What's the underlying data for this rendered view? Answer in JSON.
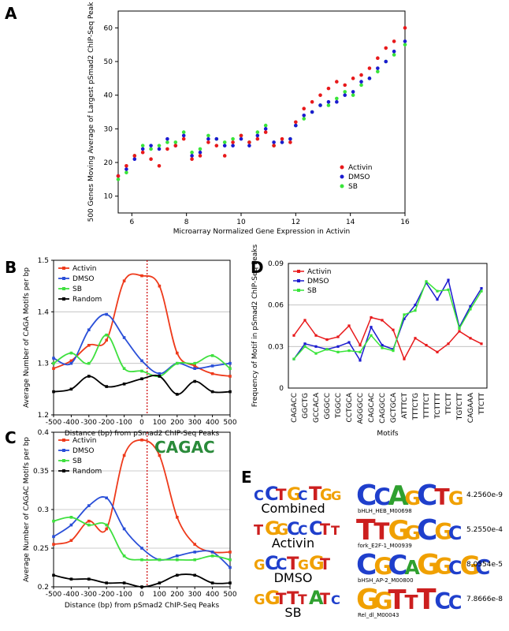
{
  "panels": {
    "A": "A",
    "B": "B",
    "C": "C",
    "D": "D",
    "E": "E"
  },
  "chart_data": [
    {
      "panel": "A",
      "type": "scatter",
      "xlabel": "Microarray Normalized Gene Expression in Activin",
      "ylabel": "500 Genes Moving Average of Largest pSmad2 ChIP-Seq Peak",
      "xlim": [
        5.5,
        16
      ],
      "ylim": [
        5,
        65
      ],
      "xticks": [
        6,
        8,
        10,
        12,
        14,
        16
      ],
      "yticks": [
        10,
        20,
        30,
        40,
        50,
        60
      ],
      "legend_position": "bottom-right",
      "colors": {
        "Activin": "#e8191b",
        "DMSO": "#1b1bd0",
        "SB": "#39e43a"
      },
      "series": [
        {
          "name": "Activin",
          "x": [
            5.5,
            5.8,
            6.1,
            6.4,
            6.7,
            7.0,
            7.3,
            7.6,
            7.9,
            8.2,
            8.5,
            8.8,
            9.1,
            9.4,
            9.7,
            10.0,
            10.3,
            10.6,
            10.9,
            11.2,
            11.5,
            11.8,
            12.0,
            12.3,
            12.6,
            12.9,
            13.2,
            13.5,
            13.8,
            14.1,
            14.4,
            14.7,
            15.0,
            15.3,
            15.6,
            16.0
          ],
          "y": [
            16,
            19,
            22,
            23,
            21,
            19,
            24,
            25,
            27,
            21,
            22,
            26,
            25,
            22,
            26,
            28,
            26,
            27,
            29,
            25,
            27,
            26,
            32,
            36,
            38,
            40,
            42,
            44,
            43,
            45,
            46,
            48,
            51,
            54,
            56,
            60
          ]
        },
        {
          "name": "DMSO",
          "x": [
            5.5,
            5.8,
            6.1,
            6.4,
            6.7,
            7.0,
            7.3,
            7.6,
            7.9,
            8.2,
            8.5,
            8.8,
            9.1,
            9.4,
            9.7,
            10.0,
            10.3,
            10.6,
            10.9,
            11.2,
            11.5,
            11.8,
            12.0,
            12.3,
            12.6,
            12.9,
            13.2,
            13.5,
            13.8,
            14.1,
            14.4,
            14.7,
            15.0,
            15.3,
            15.6,
            16.0
          ],
          "y": [
            16,
            18,
            21,
            24,
            25,
            24,
            27,
            25,
            28,
            22,
            23,
            27,
            27,
            25,
            25,
            27,
            25,
            28,
            30,
            26,
            26,
            27,
            31,
            34,
            35,
            37,
            38,
            38,
            40,
            41,
            44,
            45,
            48,
            50,
            53,
            56
          ]
        },
        {
          "name": "SB",
          "x": [
            5.5,
            5.8,
            6.1,
            6.4,
            6.7,
            7.0,
            7.3,
            7.6,
            7.9,
            8.2,
            8.5,
            8.8,
            9.1,
            9.4,
            9.7,
            10.0,
            10.3,
            10.6,
            10.9,
            11.2,
            11.5,
            11.8,
            12.0,
            12.3,
            12.6,
            12.9,
            13.2,
            13.5,
            13.8,
            14.1,
            14.4,
            14.7,
            15.0,
            15.3,
            15.6,
            16.0
          ],
          "y": [
            15,
            17,
            22,
            25,
            24,
            25,
            26,
            26,
            29,
            23,
            24,
            28,
            27,
            26,
            27,
            28,
            26,
            29,
            31,
            25,
            26,
            27,
            31,
            33,
            35,
            37,
            37,
            39,
            41,
            40,
            43,
            45,
            47,
            50,
            52,
            55
          ]
        }
      ]
    },
    {
      "panel": "B",
      "type": "line",
      "xlabel": "Distance (bp) from pSmad2 ChIP-Seq Peaks",
      "ylabel": "Average Number of CAGA Motifs per bp",
      "xlim": [
        -500,
        500
      ],
      "ylim": [
        1.2,
        1.5
      ],
      "xticks": [
        -500,
        -400,
        -300,
        -200,
        -100,
        0,
        100,
        200,
        300,
        400,
        500
      ],
      "yticks": [
        1.2,
        1.3,
        1.4,
        1.5
      ],
      "grid": true,
      "legend_position": "top-left",
      "colors": {
        "Activin": "#ee3a1b",
        "DMSO": "#2a4fd8",
        "SB": "#3fe03f",
        "Random": "#000000"
      },
      "series": [
        {
          "name": "Activin",
          "x": [
            -500,
            -400,
            -300,
            -200,
            -100,
            0,
            100,
            200,
            300,
            400,
            500
          ],
          "y": [
            1.29,
            1.305,
            1.335,
            1.345,
            1.46,
            1.47,
            1.45,
            1.32,
            1.295,
            1.28,
            1.275
          ]
        },
        {
          "name": "DMSO",
          "x": [
            -500,
            -400,
            -300,
            -200,
            -100,
            0,
            100,
            200,
            300,
            400,
            500
          ],
          "y": [
            1.31,
            1.3,
            1.365,
            1.395,
            1.35,
            1.305,
            1.28,
            1.3,
            1.29,
            1.295,
            1.3
          ]
        },
        {
          "name": "SB",
          "x": [
            -500,
            -400,
            -300,
            -200,
            -100,
            0,
            100,
            200,
            300,
            400,
            500
          ],
          "y": [
            1.3,
            1.32,
            1.3,
            1.355,
            1.29,
            1.285,
            1.275,
            1.3,
            1.3,
            1.315,
            1.29
          ]
        },
        {
          "name": "Random",
          "x": [
            -500,
            -400,
            -300,
            -200,
            -100,
            0,
            100,
            200,
            300,
            400,
            500
          ],
          "y": [
            1.245,
            1.25,
            1.275,
            1.255,
            1.26,
            1.27,
            1.275,
            1.24,
            1.265,
            1.245,
            1.245
          ]
        }
      ]
    },
    {
      "panel": "C",
      "type": "line",
      "xlabel": "Distance (bp) from pSmad2 ChIP-Seq Peaks",
      "ylabel": "Average Number of CAGAC Motifs per bp",
      "xlim": [
        -500,
        500
      ],
      "ylim": [
        0.2,
        0.4
      ],
      "xticks": [
        -500,
        -400,
        -300,
        -200,
        -100,
        0,
        100,
        200,
        300,
        400,
        500
      ],
      "yticks": [
        0.2,
        0.25,
        0.3,
        0.35,
        0.4
      ],
      "grid": true,
      "legend_position": "top-left",
      "colors": {
        "Activin": "#ee3a1b",
        "DMSO": "#2a4fd8",
        "SB": "#3fe03f",
        "Random": "#000000"
      },
      "series": [
        {
          "name": "Activin",
          "x": [
            -500,
            -400,
            -300,
            -200,
            -100,
            0,
            100,
            200,
            300,
            400,
            500
          ],
          "y": [
            0.255,
            0.26,
            0.285,
            0.275,
            0.37,
            0.39,
            0.37,
            0.29,
            0.255,
            0.245,
            0.245
          ]
        },
        {
          "name": "DMSO",
          "x": [
            -500,
            -400,
            -300,
            -200,
            -100,
            0,
            100,
            200,
            300,
            400,
            500
          ],
          "y": [
            0.265,
            0.28,
            0.305,
            0.315,
            0.275,
            0.25,
            0.235,
            0.24,
            0.245,
            0.245,
            0.225
          ]
        },
        {
          "name": "SB",
          "x": [
            -500,
            -400,
            -300,
            -200,
            -100,
            0,
            100,
            200,
            300,
            400,
            500
          ],
          "y": [
            0.285,
            0.29,
            0.28,
            0.28,
            0.24,
            0.235,
            0.235,
            0.235,
            0.235,
            0.24,
            0.235
          ]
        },
        {
          "name": "Random",
          "x": [
            -500,
            -400,
            -300,
            -200,
            -100,
            0,
            100,
            200,
            300,
            400,
            500
          ],
          "y": [
            0.215,
            0.21,
            0.21,
            0.205,
            0.205,
            0.2,
            0.205,
            0.215,
            0.215,
            0.205,
            0.205
          ]
        }
      ]
    },
    {
      "panel": "D",
      "type": "line",
      "xlabel": "Motifs",
      "ylabel": "Frequency of Motif in pSmad2 ChIP-Seq Peaks",
      "ylim": [
        0,
        0.09
      ],
      "yticks": [
        0,
        0.03,
        0.06,
        0.09
      ],
      "grid": true,
      "legend_position": "top-left",
      "categories": [
        "CAGACC",
        "GGCTG",
        "GCCACA",
        "GGGCC",
        "TGGCC",
        "CCTGCA",
        "AGGGCC",
        "CAGCAC",
        "CAGGCC",
        "GCTGCA",
        "ATTTCT",
        "TTTCTG",
        "TTTTCT",
        "TCTTTT",
        "TTCTT",
        "TGTCTT",
        "CAGAAA",
        "TTCTT"
      ],
      "highlight_color": "#e8191b",
      "highlighted": [
        "CAGACC",
        "TTTCTG",
        "CAGAAA"
      ],
      "colors": {
        "Activin": "#e8191b",
        "DMSO": "#1b1bd0",
        "SB": "#39e43a"
      },
      "series": [
        {
          "name": "Activin",
          "values": [
            0.038,
            0.049,
            0.038,
            0.035,
            0.037,
            0.045,
            0.031,
            0.051,
            0.049,
            0.042,
            0.021,
            0.036,
            0.031,
            0.026,
            0.032,
            0.041,
            0.036,
            0.032
          ]
        },
        {
          "name": "DMSO",
          "values": [
            0.021,
            0.032,
            0.03,
            0.028,
            0.03,
            0.033,
            0.02,
            0.044,
            0.031,
            0.028,
            0.05,
            0.06,
            0.076,
            0.064,
            0.078,
            0.044,
            0.059,
            0.072
          ]
        },
        {
          "name": "SB",
          "values": [
            0.021,
            0.03,
            0.025,
            0.028,
            0.026,
            0.027,
            0.026,
            0.038,
            0.029,
            0.027,
            0.053,
            0.056,
            0.077,
            0.07,
            0.071,
            0.043,
            0.057,
            0.07
          ]
        }
      ]
    }
  ],
  "motif_table": {
    "inset_logo": "CAGAC",
    "rows": [
      {
        "query_logo": "CCTGCTGG",
        "label": "Combined",
        "match_logo": "CCAGCTG",
        "match_name": "bHLH_HEB_M00698",
        "pvalue": "4.2560e-9"
      },
      {
        "query_logo": "TGGCCCTT",
        "label": "Activin",
        "match_logo": "TTGGCGC",
        "match_name": "fork_E2F-1_M00939",
        "pvalue": "5.2550e-4"
      },
      {
        "query_logo": "GCCTGGT",
        "label": "DMSO",
        "match_logo": "CGCAGGCGC",
        "match_name": "bHSH_AP-2_M00800",
        "pvalue": "8.0554e-5"
      },
      {
        "query_logo": "GGTTTATC",
        "label": "SB",
        "match_logo": "GGTTTCC",
        "match_name": "Rel_dl_M00043",
        "pvalue": "7.8666e-8"
      }
    ]
  }
}
